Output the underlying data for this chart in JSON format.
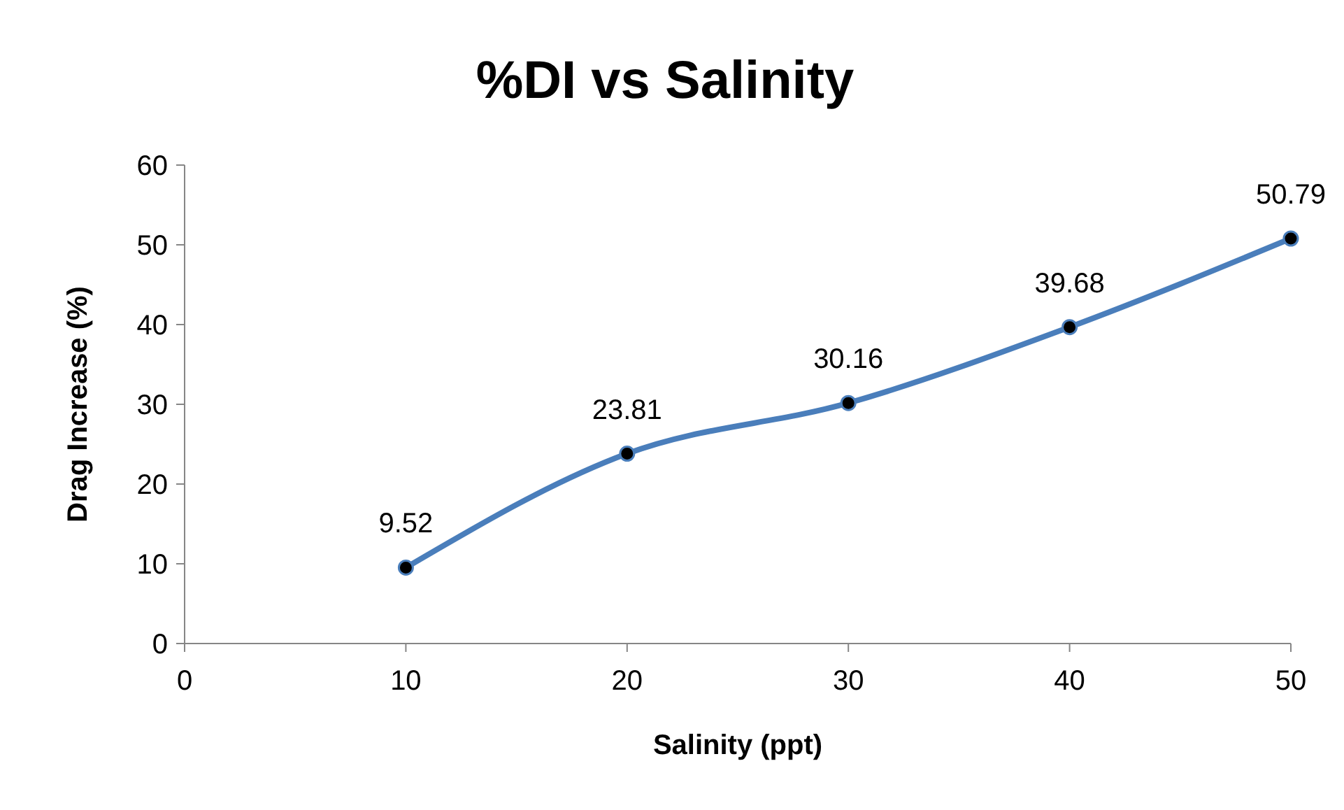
{
  "chart_data": {
    "type": "line",
    "title": "%DI vs Salinity",
    "xlabel": "Salinity (ppt)",
    "ylabel": "Drag Increase (%)",
    "x": [
      10,
      20,
      30,
      40,
      50
    ],
    "series": [
      {
        "color": "#4a7ebb",
        "values": [
          9.52,
          23.81,
          30.16,
          39.68,
          50.79
        ]
      }
    ],
    "xlim": [
      0,
      50
    ],
    "xticks": [
      0,
      10,
      20,
      30,
      40,
      50
    ],
    "ylim": [
      0,
      60
    ],
    "yticks": [
      0,
      10,
      20,
      30,
      40,
      50,
      60
    ],
    "grid": false,
    "marker": "circle",
    "line_style": "solid",
    "data_labels": true
  }
}
